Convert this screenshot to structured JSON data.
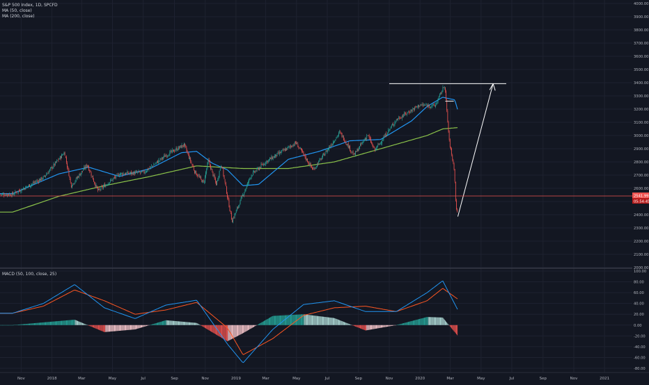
{
  "header": {
    "title": "S&P 500 Index, 1D, SPCFD",
    "ma50_label": "MA (50, close)",
    "ma200_label": "MA (200, close)",
    "macd_label": "MACD (50, 100, close, 25)"
  },
  "colors": {
    "background": "#131722",
    "grid": "#1e2230",
    "up": "#26a69a",
    "down": "#ef5350",
    "ma50": "#2196f3",
    "ma200": "#8bc34a",
    "macd": "#2196f3",
    "signal": "#ff5722",
    "annotation": "#ffffff",
    "price_line": "#ef5350"
  },
  "price_axis": {
    "ticks": [
      "4000.00",
      "3900.00",
      "3800.00",
      "3700.00",
      "3600.00",
      "3500.00",
      "3400.00",
      "3300.00",
      "3200.00",
      "3100.00",
      "3000.00",
      "2900.00",
      "2800.00",
      "2700.00",
      "2600.00",
      "2500.00",
      "2400.00",
      "2300.00",
      "2200.00",
      "2100.00",
      "2000.00"
    ],
    "last_price_label": "2541.99",
    "countdown_label": "05:54:45"
  },
  "macd_axis": {
    "ticks": [
      "100.00",
      "80.00",
      "60.00",
      "40.00",
      "20.00",
      "0.00",
      "-20.00",
      "-40.00",
      "-60.00",
      "-80.00"
    ]
  },
  "time_axis": {
    "ticks": [
      "Nov",
      "2018",
      "Mar",
      "May",
      "Jul",
      "Sep",
      "Nov",
      "2019",
      "Mar",
      "May",
      "Jul",
      "Sep",
      "Nov",
      "2020",
      "Mar",
      "May",
      "Jul",
      "Sep",
      "Nov",
      "2021"
    ]
  },
  "chart_data": [
    {
      "type": "line",
      "name": "S&P 500 daily price (approximate close path, sampled)",
      "x": [
        "2017-10",
        "2017-12",
        "2018-01-26",
        "2018-02-08",
        "2018-03-12",
        "2018-04-02",
        "2018-05-15",
        "2018-07-02",
        "2018-08-15",
        "2018-09-20",
        "2018-10-11",
        "2018-10-29",
        "2018-11-07",
        "2018-11-23",
        "2018-12-03",
        "2018-12-24",
        "2019-01-31",
        "2019-03-01",
        "2019-04-30",
        "2019-06-03",
        "2019-07-26",
        "2019-08-23",
        "2019-09-19",
        "2019-10-03",
        "2019-11-15",
        "2019-12-31",
        "2020-01-31",
        "2020-02-19",
        "2020-02-28",
        "2020-03-09",
        "2020-03-12",
        "2020-03-16"
      ],
      "y": [
        2555,
        2680,
        2873,
        2620,
        2780,
        2580,
        2710,
        2720,
        2850,
        2930,
        2728,
        2640,
        2810,
        2630,
        2790,
        2351,
        2700,
        2800,
        2945,
        2740,
        3025,
        2850,
        3005,
        2887,
        3120,
        3230,
        3225,
        3386,
        2954,
        2746,
        2480,
        2386
      ],
      "ylim": [
        2000,
        4000
      ],
      "ticks": [
        "4000.00",
        "3900.00",
        "3800.00",
        "3700.00",
        "3600.00",
        "3500.00",
        "3400.00",
        "3300.00",
        "3200.00",
        "3100.00",
        "3000.00",
        "2900.00",
        "2800.00",
        "2700.00",
        "2600.00",
        "2500.00",
        "2400.00",
        "2300.00",
        "2200.00",
        "2100.00",
        "2000.00"
      ]
    },
    {
      "type": "line",
      "name": "MA (50, close)",
      "x": [
        "2017-10",
        "2018-01",
        "2018-03",
        "2018-05",
        "2018-07",
        "2018-09",
        "2018-10",
        "2018-11",
        "2018-12",
        "2019-01",
        "2019-02",
        "2019-04",
        "2019-06",
        "2019-08",
        "2019-10",
        "2019-12",
        "2020-01",
        "2020-02",
        "2020-03-10",
        "2020-03-16"
      ],
      "y": [
        2560,
        2710,
        2760,
        2690,
        2750,
        2870,
        2880,
        2790,
        2740,
        2620,
        2630,
        2820,
        2880,
        2960,
        2970,
        3110,
        3220,
        3290,
        3270,
        3190
      ]
    },
    {
      "type": "line",
      "name": "MA (200, close)",
      "x": [
        "2017-10",
        "2018-01",
        "2018-04",
        "2018-07",
        "2018-10",
        "2019-01",
        "2019-04",
        "2019-07",
        "2019-10",
        "2020-01",
        "2020-02",
        "2020-03-16"
      ],
      "y": [
        2420,
        2540,
        2620,
        2690,
        2770,
        2750,
        2750,
        2800,
        2900,
        3000,
        3050,
        3060
      ]
    },
    {
      "type": "line",
      "name": "MACD (50, 100, close, 25)",
      "x": [
        "2017-10",
        "2017-12",
        "2018-02",
        "2018-04",
        "2018-06",
        "2018-08",
        "2018-10",
        "2018-12",
        "2019-01",
        "2019-03",
        "2019-05",
        "2019-07",
        "2019-09",
        "2019-11",
        "2020-01",
        "2020-02",
        "2020-03-16"
      ],
      "y": [
        22,
        40,
        75,
        32,
        12,
        37,
        46,
        -35,
        -70,
        -8,
        38,
        45,
        25,
        25,
        60,
        82,
        28
      ],
      "signal": [
        22,
        35,
        65,
        45,
        20,
        28,
        42,
        -5,
        -55,
        -25,
        18,
        32,
        35,
        25,
        45,
        68,
        48
      ],
      "histogram_range": [
        -60,
        20
      ],
      "ylim": [
        -80,
        100
      ]
    }
  ],
  "annotations": {
    "horizontal_resistance_level": 3393,
    "resistance_start": "2019-11-01",
    "resistance_end": "2020-06-20",
    "small_level_price": 3260,
    "arrow_from": {
      "x": "2020-03-16",
      "y": 2386
    },
    "arrow_to": {
      "x": "2020-05-25",
      "y": 3393
    }
  }
}
